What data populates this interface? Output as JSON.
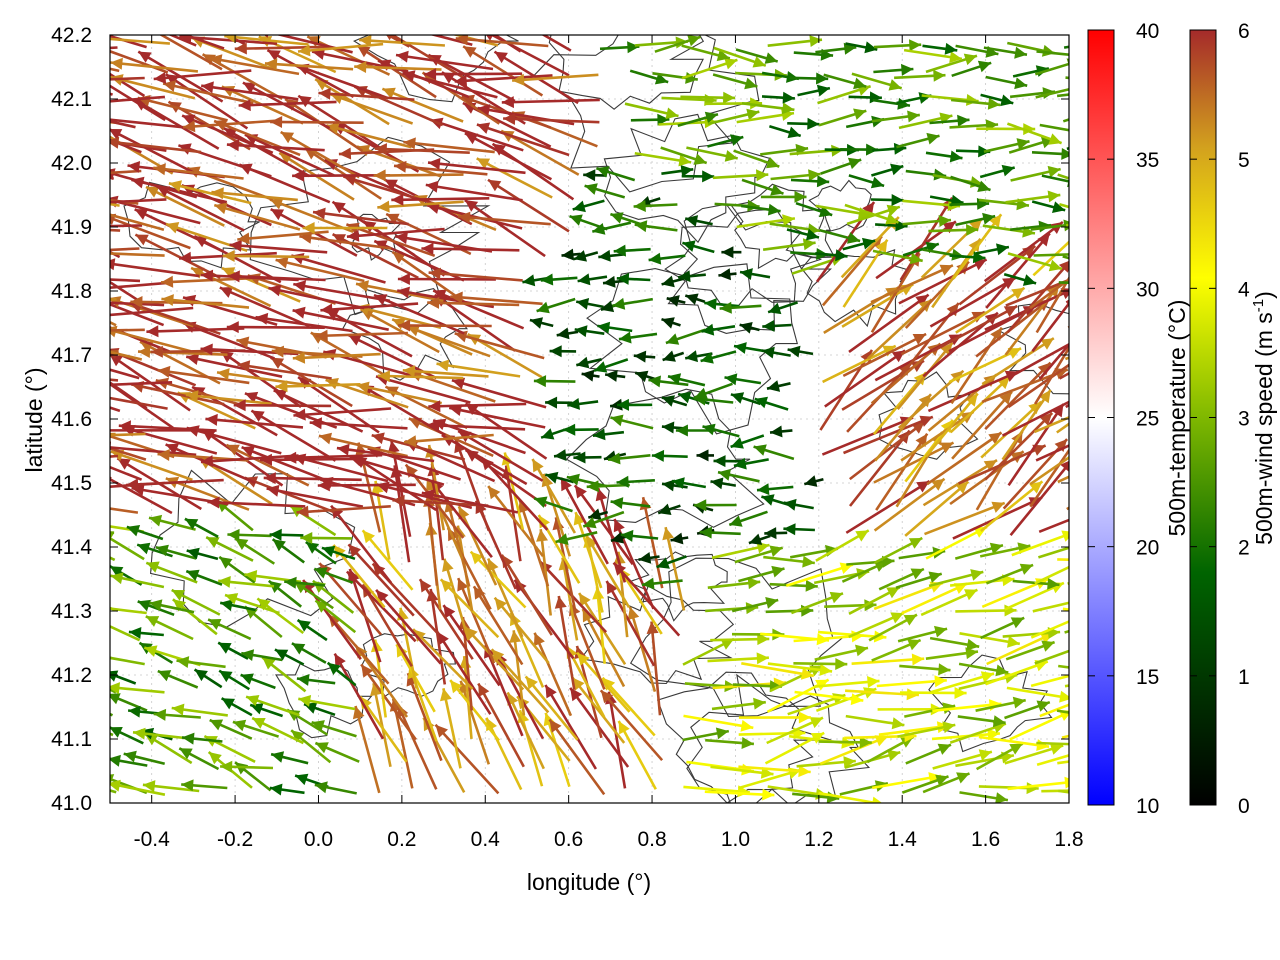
{
  "chart_data": {
    "type": "vector-field",
    "xlabel": "longitude (°)",
    "ylabel": "latitude (°)",
    "xlim": [
      -0.5,
      1.8
    ],
    "ylim": [
      41.0,
      42.2
    ],
    "xticks": [
      "-0.4",
      "-0.2",
      "0.0",
      "0.2",
      "0.4",
      "0.6",
      "0.8",
      "1.0",
      "1.2",
      "1.4",
      "1.6",
      "1.8"
    ],
    "yticks": [
      "41.0",
      "41.1",
      "41.2",
      "41.3",
      "41.4",
      "41.5",
      "41.6",
      "41.7",
      "41.8",
      "41.9",
      "42.0",
      "42.1",
      "42.2"
    ],
    "grid": true,
    "temperature_colorbar": {
      "label": "500m-temperature (°C)",
      "range": [
        10,
        40
      ],
      "ticks": [
        "10",
        "15",
        "20",
        "25",
        "30",
        "35",
        "40"
      ],
      "colors": [
        "#0000ff",
        "#ffffff",
        "#ff0000"
      ]
    },
    "wind_colorbar": {
      "label_main": "500m-wind speed (m s",
      "label_sup": "-1",
      "label_end": ")",
      "range": [
        0,
        6
      ],
      "ticks": [
        "0",
        "1",
        "2",
        "3",
        "4",
        "5",
        "6"
      ],
      "colors": [
        "#000000",
        "#006400",
        "#7fb800",
        "#ffff00",
        "#d2a01e",
        "#a52a2a"
      ]
    },
    "wind_regimes": [
      {
        "region": "northwest",
        "lon": [
          -0.5,
          0.55
        ],
        "lat": [
          41.45,
          42.2
        ],
        "direction_deg": 165,
        "speed": 6
      },
      {
        "region": "central-south",
        "lon": [
          0.1,
          0.7
        ],
        "lat": [
          41.05,
          41.45
        ],
        "direction_deg": 115,
        "speed": 5.5
      },
      {
        "region": "central-calm",
        "lon": [
          0.55,
          1.2
        ],
        "lat": [
          41.4,
          41.8
        ],
        "direction_deg": 180,
        "speed": 1.5
      },
      {
        "region": "northeast",
        "lon": [
          1.2,
          1.8
        ],
        "lat": [
          41.8,
          42.2
        ],
        "direction_deg": 0,
        "speed": 2.5
      },
      {
        "region": "east",
        "lon": [
          1.25,
          1.75
        ],
        "lat": [
          41.4,
          41.9
        ],
        "direction_deg": 40,
        "speed": 5.5
      },
      {
        "region": "southeast",
        "lon": [
          0.9,
          1.8
        ],
        "lat": [
          41.0,
          41.4
        ],
        "direction_deg": 10,
        "speed": 3.5
      },
      {
        "region": "southwest",
        "lon": [
          -0.5,
          0.1
        ],
        "lat": [
          41.0,
          41.45
        ],
        "direction_deg": 160,
        "speed": 2.5
      }
    ]
  }
}
